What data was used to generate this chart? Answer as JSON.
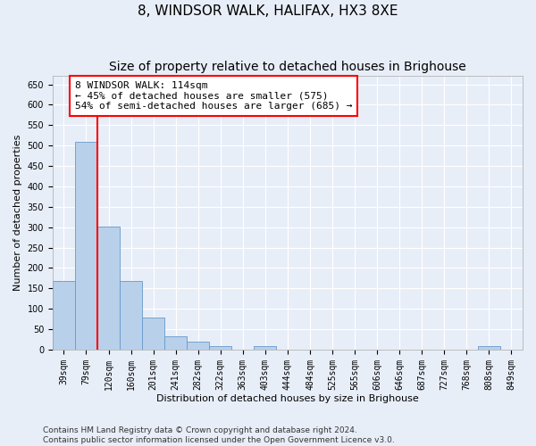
{
  "title": "8, WINDSOR WALK, HALIFAX, HX3 8XE",
  "subtitle": "Size of property relative to detached houses in Brighouse",
  "xlabel": "Distribution of detached houses by size in Brighouse",
  "ylabel": "Number of detached properties",
  "categories": [
    "39sqm",
    "79sqm",
    "120sqm",
    "160sqm",
    "201sqm",
    "241sqm",
    "282sqm",
    "322sqm",
    "363sqm",
    "403sqm",
    "444sqm",
    "484sqm",
    "525sqm",
    "565sqm",
    "606sqm",
    "646sqm",
    "687sqm",
    "727sqm",
    "768sqm",
    "808sqm",
    "849sqm"
  ],
  "values": [
    168,
    510,
    302,
    168,
    78,
    32,
    20,
    8,
    0,
    8,
    0,
    0,
    0,
    0,
    0,
    0,
    0,
    0,
    0,
    8,
    0
  ],
  "bar_color": "#b8d0ea",
  "bar_edge_color": "#6699cc",
  "annotation_text_line1": "8 WINDSOR WALK: 114sqm",
  "annotation_text_line2": "← 45% of detached houses are smaller (575)",
  "annotation_text_line3": "54% of semi-detached houses are larger (685) →",
  "annotation_box_facecolor": "white",
  "annotation_box_edgecolor": "red",
  "red_line_color": "red",
  "ylim": [
    0,
    670
  ],
  "yticks": [
    0,
    50,
    100,
    150,
    200,
    250,
    300,
    350,
    400,
    450,
    500,
    550,
    600,
    650
  ],
  "background_color": "#e8eef8",
  "grid_color": "#ffffff",
  "title_fontsize": 11,
  "subtitle_fontsize": 10,
  "axis_label_fontsize": 8,
  "tick_fontsize": 7,
  "footer_fontsize": 6.5,
  "footer_line1": "Contains HM Land Registry data © Crown copyright and database right 2024.",
  "footer_line2": "Contains public sector information licensed under the Open Government Licence v3.0."
}
